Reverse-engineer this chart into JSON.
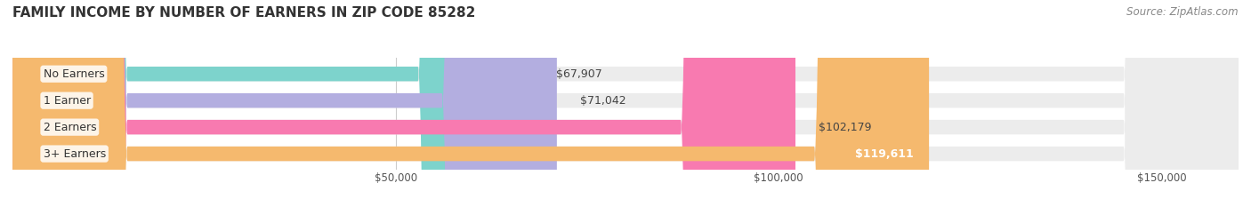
{
  "title": "FAMILY INCOME BY NUMBER OF EARNERS IN ZIP CODE 85282",
  "source": "Source: ZipAtlas.com",
  "categories": [
    "No Earners",
    "1 Earner",
    "2 Earners",
    "3+ Earners"
  ],
  "values": [
    67907,
    71042,
    102179,
    119611
  ],
  "bar_colors": [
    "#7dd3cc",
    "#b3aee0",
    "#f87ab0",
    "#f5b96e"
  ],
  "bar_bg_color": "#f0f0f0",
  "value_labels": [
    "$67,907",
    "$71,042",
    "$102,179",
    "$119,611"
  ],
  "xmin": 0,
  "xmax": 160000,
  "xticks": [
    50000,
    100000,
    150000
  ],
  "xtick_labels": [
    "$50,000",
    "$100,000",
    "$150,000"
  ],
  "background_color": "#ffffff",
  "bar_height": 0.55,
  "title_fontsize": 11,
  "label_fontsize": 9,
  "tick_fontsize": 8.5,
  "source_fontsize": 8.5,
  "category_fontsize": 9
}
